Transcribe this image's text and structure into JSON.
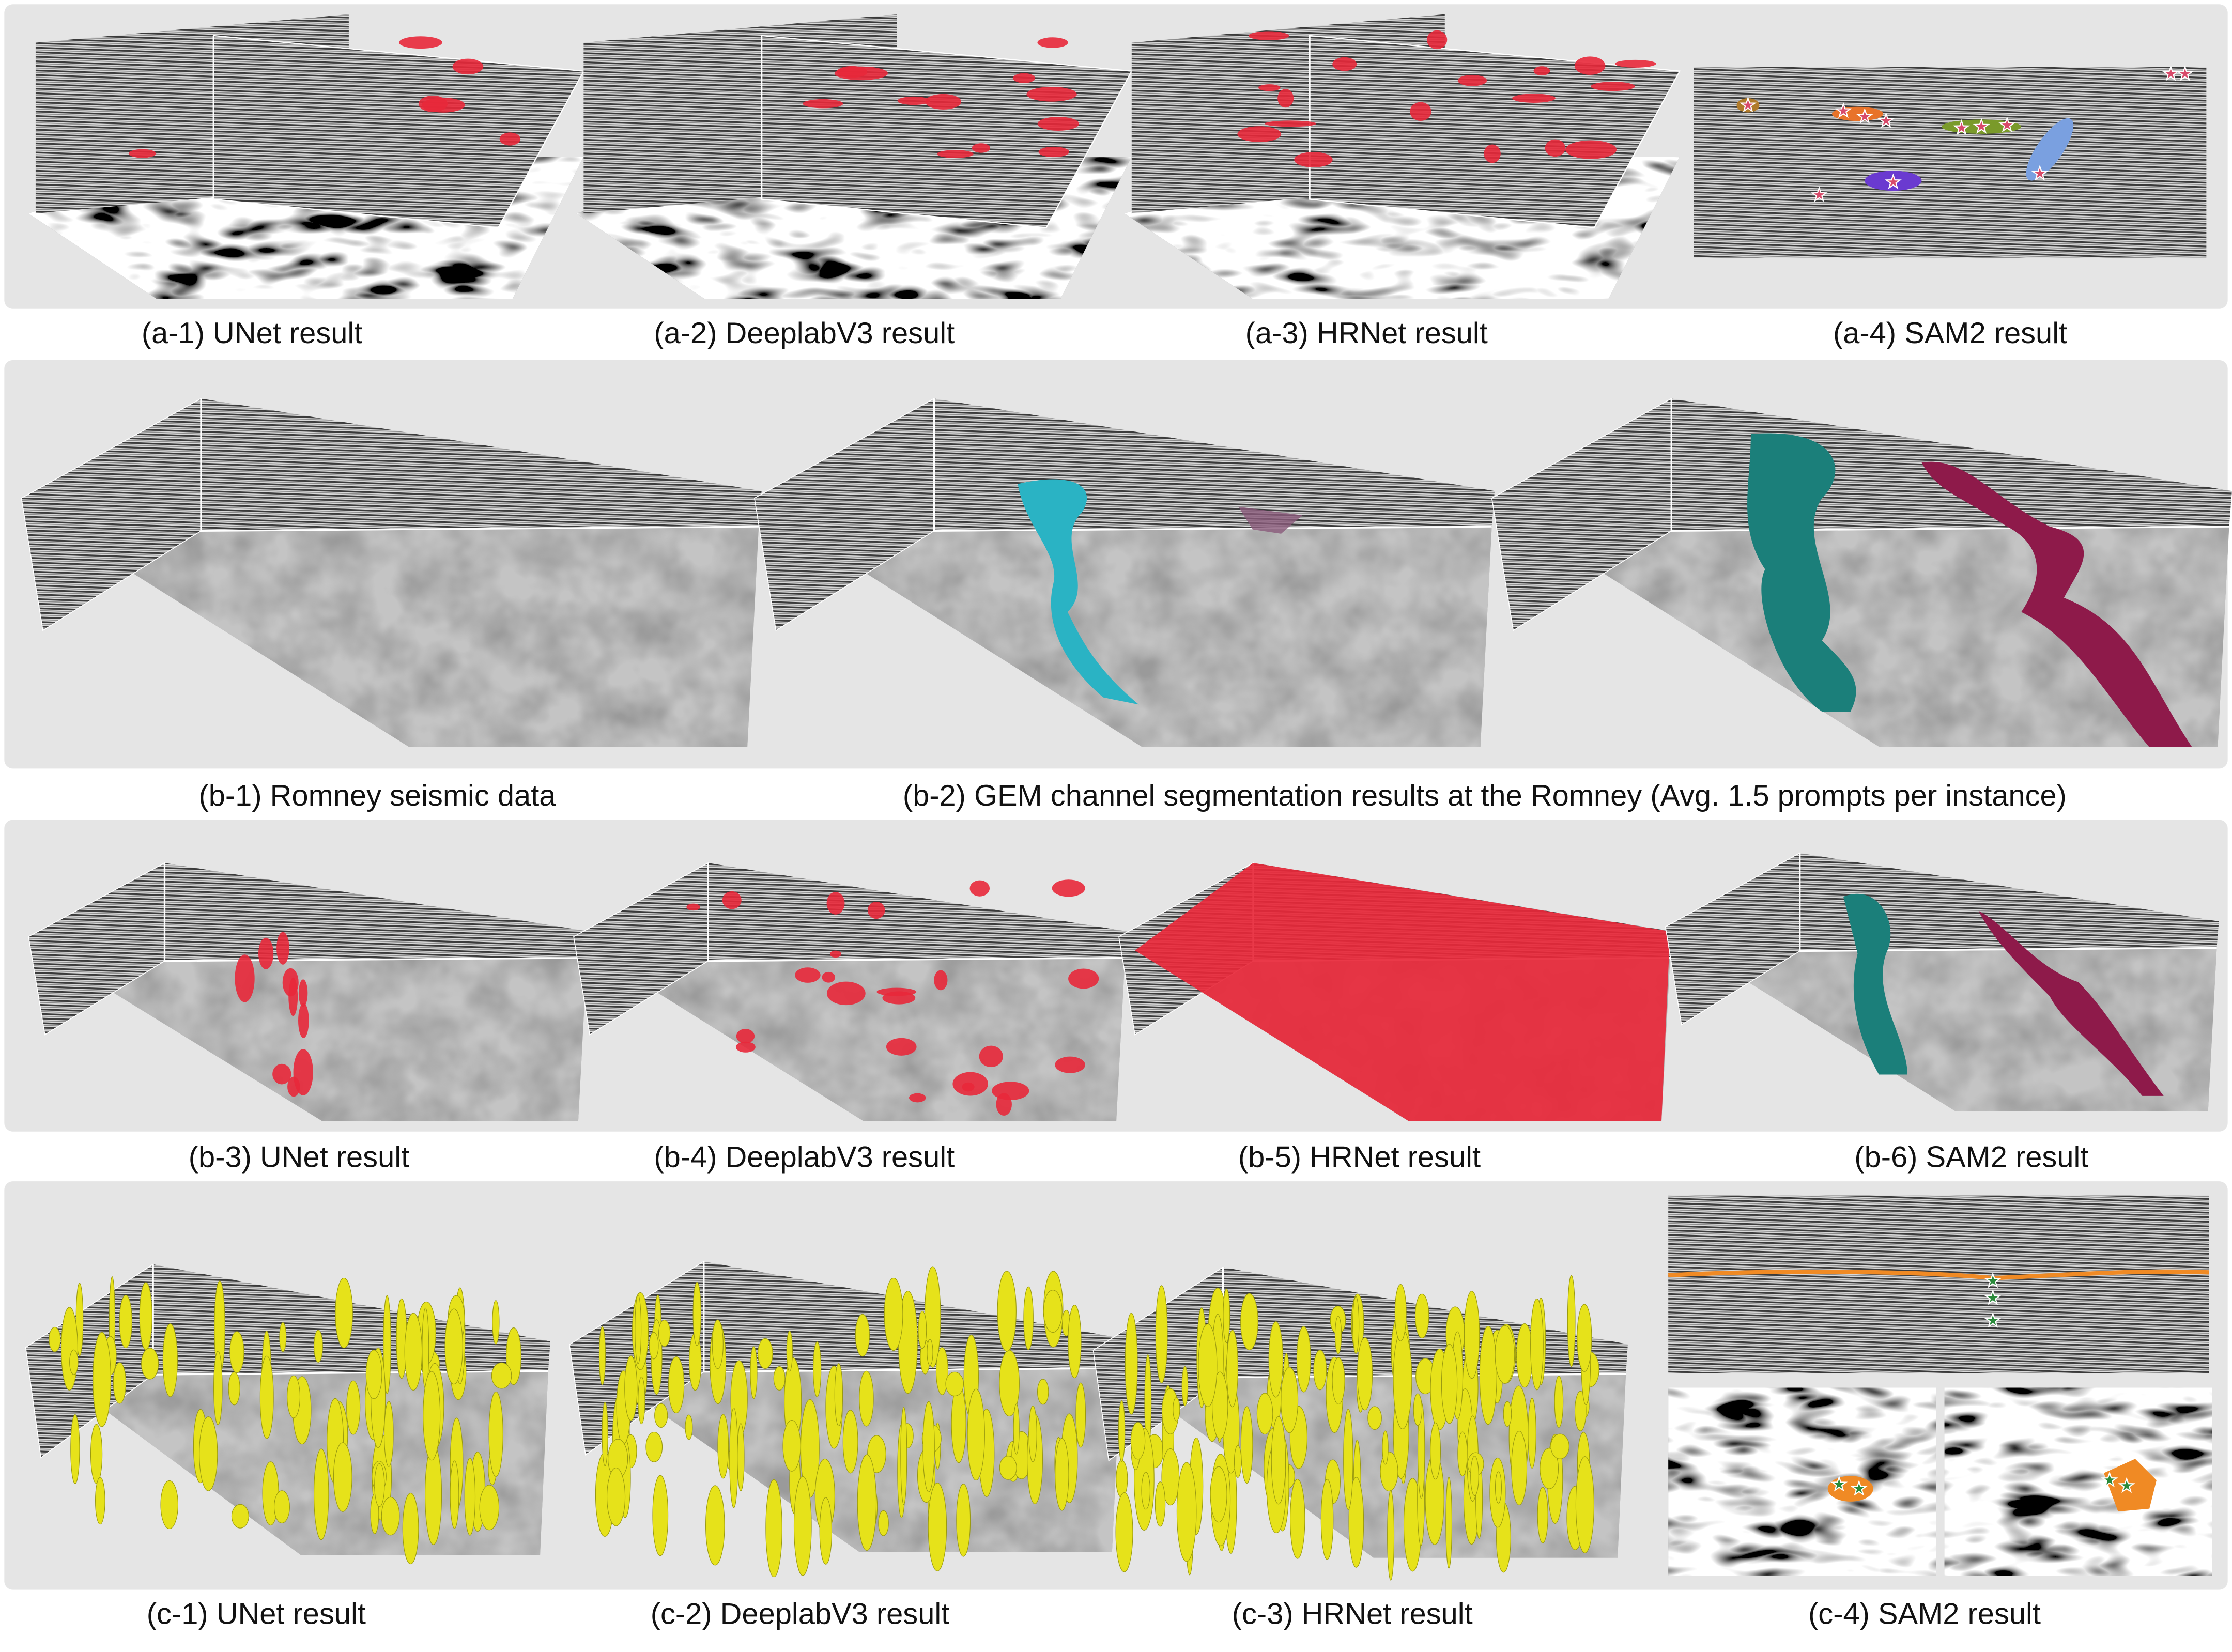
{
  "figure": {
    "rows": [
      {
        "id": "a",
        "captions": [
          "(a-1) UNet result",
          "(a-2) DeeplabV3 result",
          "(a-3) HRNet result",
          "(a-4) SAM2 result"
        ]
      },
      {
        "id": "b-top",
        "captions": [
          "(b-1) Romney seismic data",
          "(b-2) GEM channel segmentation results at the Romney (Avg. 1.5 prompts per instance)"
        ]
      },
      {
        "id": "b-bottom",
        "captions": [
          "(b-3) UNet result",
          "(b-4) DeeplabV3 result",
          "(b-5) HRNet result",
          "(b-6) SAM2 result"
        ]
      },
      {
        "id": "c",
        "captions": [
          "(c-1) UNet result",
          "(c-2) DeeplabV3 result",
          "(c-3) HRNet result",
          "(c-4) SAM2 result"
        ]
      }
    ]
  },
  "colors": {
    "panel_background": "#e5e5e5",
    "baseline_mask": "#e8283a",
    "gem_channel_1": "#2ab3c4",
    "gem_channel_2": "#8e1a4a",
    "sam2_channel_1": "#1b7f7a",
    "karst_mask": "#e6e21a",
    "horizon": "#f08a24",
    "prompt_star": "#2a8a3a"
  }
}
